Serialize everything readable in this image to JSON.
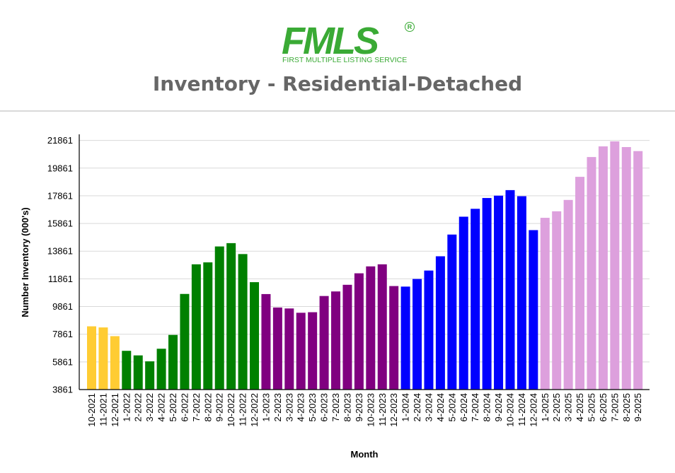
{
  "header": {
    "logo_text": "FMLS",
    "logo_reg": "R",
    "logo_subtitle": "FIRST MULTIPLE LISTING SERVICE",
    "brand_color": "#3aaa35",
    "title": "Inventory - Residential-Detached"
  },
  "chart_data": {
    "type": "bar",
    "title": "Inventory - Residential-Detached",
    "xlabel": "Month",
    "ylabel": "Number Inventory (000's)",
    "ylim": [
      3861,
      22300
    ],
    "yticks": [
      3861,
      5861,
      7861,
      9861,
      11861,
      13861,
      15861,
      17861,
      19861,
      21861
    ],
    "grid": true,
    "legend": "none",
    "categories": [
      "10-2021",
      "11-2021",
      "12-2021",
      "1-2022",
      "2-2022",
      "3-2022",
      "4-2022",
      "5-2022",
      "6-2022",
      "7-2022",
      "8-2022",
      "9-2022",
      "10-2022",
      "11-2022",
      "12-2022",
      "1-2023",
      "2-2023",
      "3-2023",
      "4-2023",
      "5-2023",
      "6-2023",
      "7-2023",
      "8-2023",
      "9-2023",
      "10-2023",
      "11-2023",
      "12-2023",
      "1-2024",
      "2-2024",
      "3-2024",
      "4-2024",
      "5-2024",
      "6-2024",
      "7-2024",
      "8-2024",
      "9-2024",
      "10-2024",
      "11-2024",
      "12-2024",
      "1-2025",
      "2-2025",
      "3-2025",
      "4-2025",
      "5-2025",
      "6-2025",
      "7-2025",
      "8-2025",
      "9-2025"
    ],
    "values": [
      8430,
      8350,
      7720,
      6660,
      6330,
      5900,
      6810,
      7810,
      10770,
      12910,
      13050,
      14200,
      14440,
      13650,
      11620,
      10760,
      9790,
      9720,
      9410,
      9450,
      10620,
      10950,
      11430,
      12260,
      12760,
      12910,
      11340,
      11300,
      11850,
      12460,
      13490,
      15060,
      16350,
      16920,
      17700,
      17870,
      18270,
      17830,
      15380,
      16270,
      16740,
      17560,
      19230,
      20660,
      21430,
      21790,
      21380,
      21090
    ],
    "year_colors": {
      "2021": "#ffcc33",
      "2022": "#008000",
      "2023": "#800080",
      "2024": "#0000ff",
      "2025": "#dda0dd"
    }
  }
}
